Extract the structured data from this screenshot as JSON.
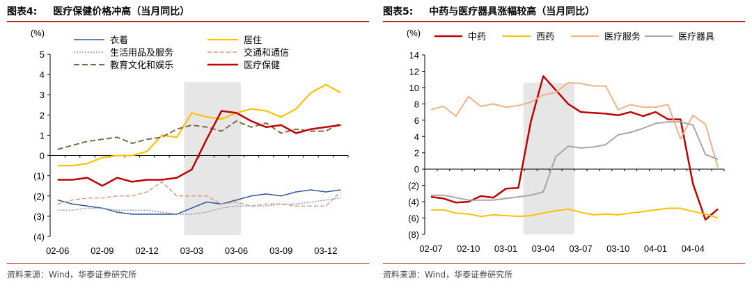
{
  "charts": [
    {
      "label": "图表4:",
      "title": "医疗保健价格冲高（当月同比）",
      "source": "资料来源：Wind，华泰证券研究所",
      "unit": "(%)"
    },
    {
      "label": "图表5:",
      "title": "中药与医疗器具涨幅较高（当月同比）",
      "source": "资料来源：Wind，华泰证券研究所",
      "unit": "(%)"
    }
  ],
  "chart_data": [
    {
      "type": "line",
      "title": "医疗保健价格冲高（当月同比）",
      "ylabel": "(%)",
      "ylim": [
        -4,
        5
      ],
      "yticks": [
        {
          "v": 5,
          "t": "5"
        },
        {
          "v": 4,
          "t": "4"
        },
        {
          "v": 3,
          "t": "3"
        },
        {
          "v": 2,
          "t": "2"
        },
        {
          "v": 1,
          "t": "1"
        },
        {
          "v": 0,
          "t": "0"
        },
        {
          "v": -1,
          "t": "(1)"
        },
        {
          "v": -2,
          "t": "(2)"
        },
        {
          "v": -3,
          "t": "(3)"
        },
        {
          "v": -4,
          "t": "(4)"
        }
      ],
      "x": [
        "2002-06",
        "2002-07",
        "2002-08",
        "2002-09",
        "2002-10",
        "2002-11",
        "2002-12",
        "2003-01",
        "2003-02",
        "2003-03",
        "2003-04",
        "2003-05",
        "2003-06",
        "2003-07",
        "2003-08",
        "2003-09",
        "2003-10",
        "2003-11",
        "2003-12",
        "2004-01"
      ],
      "xticks": [
        {
          "i": 0,
          "t": "02-06"
        },
        {
          "i": 3,
          "t": "02-09"
        },
        {
          "i": 6,
          "t": "02-12"
        },
        {
          "i": 9,
          "t": "03-03"
        },
        {
          "i": 12,
          "t": "03-06"
        },
        {
          "i": 15,
          "t": "03-09"
        },
        {
          "i": 18,
          "t": "03-12"
        }
      ],
      "shade": [
        8.5,
        12.3
      ],
      "grid": false,
      "legend_position": "top",
      "series": [
        {
          "name": "衣着",
          "color": "#2f5597",
          "dash": "solid",
          "width": 1.5,
          "values": [
            -2.2,
            -2.4,
            -2.5,
            -2.6,
            -2.8,
            -2.9,
            -2.9,
            -2.9,
            -2.9,
            -2.6,
            -2.3,
            -2.4,
            -2.2,
            -2.0,
            -1.9,
            -2.0,
            -1.8,
            -1.7,
            -1.8,
            -1.7
          ]
        },
        {
          "name": "居住",
          "color": "#ffc000",
          "dash": "solid",
          "width": 2.2,
          "values": [
            -0.5,
            -0.5,
            -0.4,
            -0.1,
            0.0,
            0.0,
            0.2,
            1.0,
            0.9,
            2.1,
            1.9,
            1.8,
            2.1,
            2.3,
            2.2,
            1.9,
            2.3,
            3.1,
            3.5,
            3.1
          ]
        },
        {
          "name": "生活用品及服务",
          "color": "#8497b0",
          "dash": "2,2",
          "width": 1.5,
          "values": [
            -2.7,
            -2.7,
            -2.6,
            -2.6,
            -2.7,
            -2.7,
            -2.7,
            -2.8,
            -2.9,
            -2.9,
            -2.8,
            -2.6,
            -2.5,
            -2.5,
            -2.5,
            -2.4,
            -2.4,
            -2.3,
            -2.2,
            -2.1
          ]
        },
        {
          "name": "交通和通信",
          "color": "#d99b84",
          "dash": "6,3",
          "width": 1.5,
          "values": [
            -2.4,
            -2.2,
            -2.1,
            -2.1,
            -2.0,
            -2.0,
            -1.8,
            -1.3,
            -2.0,
            -2.0,
            -2.0,
            -2.4,
            -2.3,
            -2.5,
            -2.4,
            -2.4,
            -2.5,
            -2.5,
            -2.5,
            -1.8
          ]
        },
        {
          "name": "教育文化和娱乐",
          "color": "#7f6847",
          "dash": "8,4",
          "width": 2.0,
          "values": [
            0.3,
            0.5,
            0.7,
            0.8,
            0.9,
            0.6,
            0.8,
            0.9,
            1.3,
            1.5,
            1.4,
            1.2,
            1.7,
            1.4,
            1.6,
            1.1,
            1.3,
            1.2,
            1.2,
            1.6
          ]
        },
        {
          "name": "医疗保健",
          "color": "#c00000",
          "dash": "solid",
          "width": 2.5,
          "values": [
            -1.2,
            -1.2,
            -1.1,
            -1.5,
            -1.1,
            -1.3,
            -1.2,
            -1.2,
            -1.1,
            -0.7,
            0.8,
            2.2,
            2.1,
            1.7,
            1.4,
            1.5,
            1.1,
            1.3,
            1.4,
            1.5
          ]
        }
      ]
    },
    {
      "type": "line",
      "title": "中药与医疗器具涨幅较高（当月同比）",
      "ylabel": "(%)",
      "ylim": [
        -8,
        14
      ],
      "yticks": [
        {
          "v": 14,
          "t": "14"
        },
        {
          "v": 12,
          "t": "12"
        },
        {
          "v": 10,
          "t": "10"
        },
        {
          "v": 8,
          "t": "8"
        },
        {
          "v": 6,
          "t": "6"
        },
        {
          "v": 4,
          "t": "4"
        },
        {
          "v": 2,
          "t": "2"
        },
        {
          "v": 0,
          "t": "0"
        },
        {
          "v": -2,
          "t": "(2)"
        },
        {
          "v": -4,
          "t": "(4)"
        },
        {
          "v": -6,
          "t": "(6)"
        },
        {
          "v": -8,
          "t": "(8)"
        }
      ],
      "x": [
        "2002-07",
        "2002-08",
        "2002-09",
        "2002-10",
        "2002-11",
        "2002-12",
        "2003-01",
        "2003-02",
        "2003-03",
        "2003-04",
        "2003-05",
        "2003-06",
        "2003-07",
        "2003-08",
        "2003-09",
        "2003-10",
        "2003-11",
        "2003-12",
        "2004-01",
        "2004-02",
        "2004-03",
        "2004-04",
        "2004-05",
        "2004-06"
      ],
      "xticks": [
        {
          "i": 0,
          "t": "02-07"
        },
        {
          "i": 3,
          "t": "02-10"
        },
        {
          "i": 6,
          "t": "03-01"
        },
        {
          "i": 9,
          "t": "03-04"
        },
        {
          "i": 12,
          "t": "03-07"
        },
        {
          "i": 15,
          "t": "03-10"
        },
        {
          "i": 18,
          "t": "04-01"
        },
        {
          "i": 21,
          "t": "04-04"
        }
      ],
      "shade": [
        7.4,
        11.5
      ],
      "grid": false,
      "legend_position": "top",
      "series": [
        {
          "name": "中药",
          "color": "#c00000",
          "dash": "solid",
          "width": 2.5,
          "values": [
            -3.4,
            -3.6,
            -4.1,
            -4.0,
            -3.3,
            -3.5,
            -2.4,
            -2.3,
            5.8,
            11.4,
            9.7,
            8.0,
            7.0,
            6.9,
            6.8,
            6.6,
            7.0,
            6.5,
            7.0,
            6.1,
            6.1,
            -1.8,
            -6.2,
            -4.9
          ]
        },
        {
          "name": "西药",
          "color": "#ffc000",
          "dash": "solid",
          "width": 2.0,
          "values": [
            -5.0,
            -5.0,
            -5.4,
            -5.5,
            -5.8,
            -5.6,
            -5.7,
            -5.8,
            -5.7,
            -5.4,
            -5.1,
            -4.9,
            -5.3,
            -5.6,
            -5.5,
            -5.6,
            -5.4,
            -5.2,
            -5.0,
            -4.8,
            -4.8,
            -5.2,
            -5.5,
            -6.0
          ]
        },
        {
          "name": "医疗服务",
          "color": "#f4b183",
          "dash": "solid",
          "width": 2.0,
          "values": [
            7.3,
            7.7,
            6.5,
            8.9,
            7.7,
            8.0,
            7.6,
            7.8,
            8.2,
            9.1,
            9.4,
            10.6,
            10.5,
            10.2,
            10.2,
            7.3,
            7.9,
            7.6,
            7.6,
            7.9,
            3.7,
            6.6,
            5.5,
            0.2
          ]
        },
        {
          "name": "医疗器具",
          "color": "#a6a6a6",
          "dash": "solid",
          "width": 2.0,
          "values": [
            -3.2,
            -3.2,
            -3.5,
            -3.8,
            -3.8,
            -3.8,
            -3.6,
            -3.4,
            -3.2,
            -2.8,
            1.5,
            2.8,
            2.6,
            2.7,
            3.0,
            4.2,
            4.5,
            5.0,
            5.6,
            5.8,
            5.8,
            5.4,
            1.8,
            1.2
          ]
        }
      ]
    }
  ]
}
